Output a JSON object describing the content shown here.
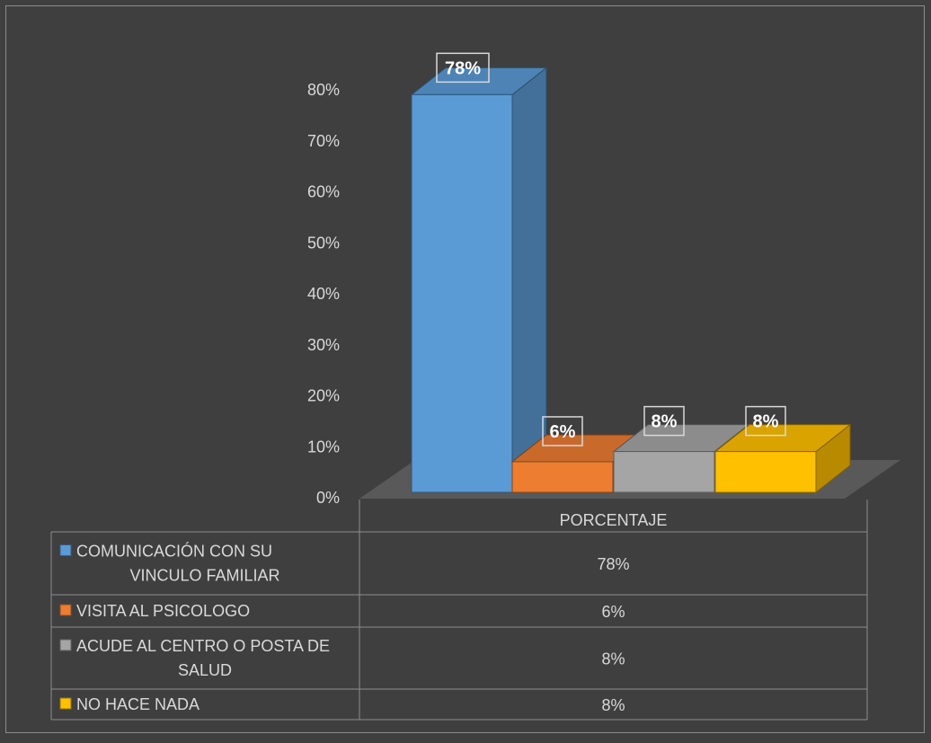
{
  "chart_data": {
    "type": "bar",
    "title": "",
    "xlabel": "",
    "ylabel": "",
    "ylim": [
      0,
      80
    ],
    "yticks": [
      "0%",
      "10%",
      "20%",
      "30%",
      "40%",
      "50%",
      "60%",
      "70%",
      "80%"
    ],
    "table_header": "PORCENTAJE",
    "series": [
      {
        "name": "COMUNICACIÓN CON SU VINCULO FAMILIAR",
        "name_lines": [
          "COMUNICACIÓN CON SU",
          "VINCULO FAMILIAR"
        ],
        "value": 78,
        "label": "78%",
        "color": "#5b9bd5"
      },
      {
        "name": "VISITA AL PSICOLOGO",
        "name_lines": [
          "VISITA AL PSICOLOGO"
        ],
        "value": 6,
        "label": "6%",
        "color": "#ed7d31"
      },
      {
        "name": "ACUDE AL CENTRO O POSTA DE SALUD",
        "name_lines": [
          "ACUDE AL CENTRO O POSTA DE",
          "SALUD"
        ],
        "value": 8,
        "label": "8%",
        "color": "#a5a5a5"
      },
      {
        "name": "NO HACE NADA",
        "name_lines": [
          "NO HACE NADA"
        ],
        "value": 8,
        "label": "8%",
        "color": "#ffc000"
      }
    ],
    "legend": "data-table"
  }
}
